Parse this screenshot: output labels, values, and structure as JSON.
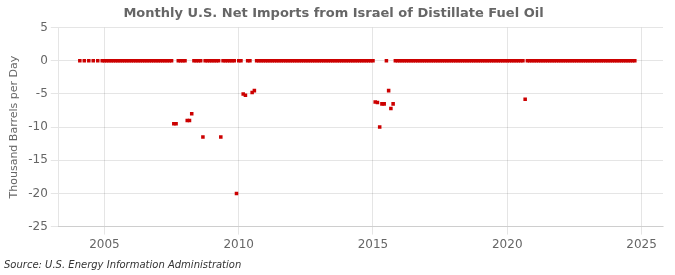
{
  "chart_data": {
    "type": "scatter",
    "title": "Monthly U.S. Net Imports from Israel of Distillate Fuel Oil",
    "ylabel": "Thousand Barrels per Day",
    "annotation": "Source: U.S. Energy Information Administration",
    "xlim": [
      2003.3,
      2025.8
    ],
    "xticks": [
      2005,
      2010,
      2015,
      2020,
      2025
    ],
    "ylim": [
      -25,
      5
    ],
    "yticks": [
      -25,
      -20,
      -15,
      -10,
      -5,
      0,
      5
    ],
    "grid": true,
    "color": "#cc0000",
    "marker": "square",
    "x": [
      2004.083,
      2004.25,
      2004.417,
      2004.583,
      2004.75,
      2004.917,
      2005.0,
      2005.083,
      2005.167,
      2005.25,
      2005.333,
      2005.417,
      2005.5,
      2005.583,
      2005.667,
      2005.75,
      2005.833,
      2005.917,
      2006.0,
      2006.083,
      2006.167,
      2006.25,
      2006.333,
      2006.417,
      2006.5,
      2006.583,
      2006.667,
      2006.75,
      2006.833,
      2006.917,
      2007.0,
      2007.083,
      2007.167,
      2007.25,
      2007.333,
      2007.417,
      2007.5,
      2007.583,
      2007.667,
      2007.75,
      2007.833,
      2007.917,
      2008.0,
      2008.083,
      2008.167,
      2008.25,
      2008.333,
      2008.417,
      2008.5,
      2008.583,
      2008.667,
      2008.75,
      2008.833,
      2008.917,
      2009.0,
      2009.083,
      2009.167,
      2009.25,
      2009.333,
      2009.417,
      2009.5,
      2009.583,
      2009.667,
      2009.75,
      2009.833,
      2009.917,
      2010.0,
      2010.083,
      2010.167,
      2010.25,
      2010.333,
      2010.417,
      2010.5,
      2010.583,
      2010.667,
      2010.75,
      2010.833,
      2010.917,
      2011.0,
      2011.083,
      2011.167,
      2011.25,
      2011.333,
      2011.417,
      2011.5,
      2011.583,
      2011.667,
      2011.75,
      2011.833,
      2011.917,
      2012.0,
      2012.083,
      2012.167,
      2012.25,
      2012.333,
      2012.417,
      2012.5,
      2012.583,
      2012.667,
      2012.75,
      2012.833,
      2012.917,
      2013.0,
      2013.083,
      2013.167,
      2013.25,
      2013.333,
      2013.417,
      2013.5,
      2013.583,
      2013.667,
      2013.75,
      2013.833,
      2013.917,
      2014.0,
      2014.083,
      2014.167,
      2014.25,
      2014.333,
      2014.417,
      2014.5,
      2014.583,
      2014.667,
      2014.75,
      2014.833,
      2014.917,
      2015.0,
      2015.083,
      2015.167,
      2015.25,
      2015.333,
      2015.417,
      2015.5,
      2015.583,
      2015.667,
      2015.75,
      2015.833,
      2015.917,
      2016.0,
      2016.083,
      2016.167,
      2016.25,
      2016.333,
      2016.417,
      2016.5,
      2016.583,
      2016.667,
      2016.75,
      2016.833,
      2016.917,
      2017.0,
      2017.083,
      2017.167,
      2017.25,
      2017.333,
      2017.417,
      2017.5,
      2017.583,
      2017.667,
      2017.75,
      2017.833,
      2017.917,
      2018.0,
      2018.083,
      2018.167,
      2018.25,
      2018.333,
      2018.417,
      2018.5,
      2018.583,
      2018.667,
      2018.75,
      2018.833,
      2018.917,
      2019.0,
      2019.083,
      2019.167,
      2019.25,
      2019.333,
      2019.417,
      2019.5,
      2019.583,
      2019.667,
      2019.75,
      2019.833,
      2019.917,
      2020.0,
      2020.083,
      2020.167,
      2020.25,
      2020.333,
      2020.417,
      2020.5,
      2020.583,
      2020.667,
      2020.75,
      2020.833,
      2020.917,
      2021.0,
      2021.083,
      2021.167,
      2021.25,
      2021.333,
      2021.417,
      2021.5,
      2021.583,
      2021.667,
      2021.75,
      2021.833,
      2021.917,
      2022.0,
      2022.083,
      2022.167,
      2022.25,
      2022.333,
      2022.417,
      2022.5,
      2022.583,
      2022.667,
      2022.75,
      2022.833,
      2022.917,
      2023.0,
      2023.083,
      2023.167,
      2023.25,
      2023.333,
      2023.417,
      2023.5,
      2023.583,
      2023.667,
      2023.75,
      2023.833,
      2023.917,
      2024.0,
      2024.083,
      2024.167,
      2024.25,
      2024.333,
      2024.417,
      2024.5,
      2024.583,
      2024.667,
      2024.75
    ],
    "values": [
      0,
      0,
      0,
      0,
      0,
      0,
      0,
      0,
      0,
      0,
      0,
      0,
      0,
      0,
      0,
      0,
      0,
      0,
      0,
      0,
      0,
      0,
      0,
      0,
      0,
      0,
      0,
      0,
      0,
      0,
      0,
      0,
      0,
      0,
      0,
      0,
      0,
      -9.5,
      -9.5,
      0,
      0,
      0,
      0,
      -9.0,
      -9.0,
      -8.0,
      0,
      0,
      0,
      0,
      -11.5,
      0,
      0,
      0,
      0,
      0,
      0,
      0,
      -11.5,
      0,
      0,
      0,
      0,
      0,
      0,
      -20.0,
      0,
      0,
      -5.0,
      -5.2,
      0,
      0,
      -4.8,
      -4.5,
      0,
      0,
      0,
      0,
      0,
      0,
      0,
      0,
      0,
      0,
      0,
      0,
      0,
      0,
      0,
      0,
      0,
      0,
      0,
      0,
      0,
      0,
      0,
      0,
      0,
      0,
      0,
      0,
      0,
      0,
      0,
      0,
      0,
      0,
      0,
      0,
      0,
      0,
      0,
      0,
      0,
      0,
      0,
      0,
      0,
      0,
      0,
      0,
      0,
      0,
      0,
      0,
      0,
      -6.2,
      -6.3,
      -10.0,
      -6.5,
      -6.5,
      0,
      -4.5,
      -7.2,
      -6.5,
      0,
      0,
      0,
      0,
      0,
      0,
      0,
      0,
      0,
      0,
      0,
      0,
      0,
      0,
      0,
      0,
      0,
      0,
      0,
      0,
      0,
      0,
      0,
      0,
      0,
      0,
      0,
      0,
      0,
      0,
      0,
      0,
      0,
      0,
      0,
      0,
      0,
      0,
      0,
      0,
      0,
      0,
      0,
      0,
      0,
      0,
      0,
      0,
      0,
      0,
      0,
      0,
      0,
      0,
      0,
      0,
      0,
      0,
      -5.8,
      0,
      0,
      0,
      0,
      0,
      0,
      0,
      0,
      0,
      0,
      0,
      0,
      0,
      0,
      0,
      0,
      0,
      0,
      0,
      0,
      0,
      0,
      0,
      0,
      0,
      0,
      0,
      0,
      0,
      0,
      0,
      0,
      0,
      0,
      0,
      0,
      0,
      0,
      0,
      0,
      0,
      0,
      0,
      0,
      0,
      0,
      0,
      0,
      0
    ]
  }
}
